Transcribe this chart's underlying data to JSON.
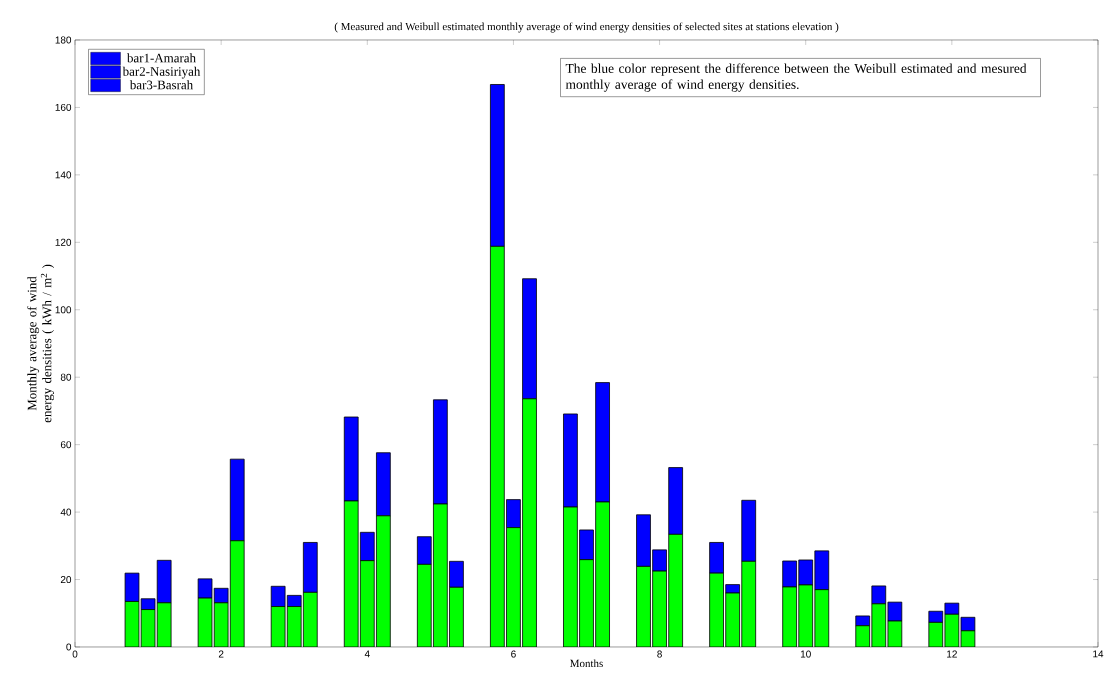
{
  "chart_data": {
    "type": "bar",
    "stacked": true,
    "title": "( Measured and Weibull estimated monthly average of wind energy densities of selected sites at stations elevation )",
    "xlabel": "Months",
    "ylabel": "Monthly average of wind energy densities ( kWh / m$^{2}$ )",
    "xlim": [
      0,
      14
    ],
    "xticks": [
      0,
      2,
      4,
      6,
      8,
      10,
      12,
      14
    ],
    "ylim": [
      0,
      180
    ],
    "yticks": [
      0,
      20,
      40,
      60,
      80,
      100,
      120,
      140,
      160,
      180
    ],
    "grid": false,
    "legend": "top left",
    "annotations": [
      "The blue color represent the difference between the Weibull estimated and mesured monthly average of wind energy densities."
    ],
    "x": [
      0.78,
      1,
      1.22,
      1.78,
      2,
      2.22,
      2.78,
      3,
      3.22,
      3.78,
      4,
      4.22,
      4.78,
      5,
      5.22,
      5.78,
      6,
      6.22,
      6.78,
      7,
      7.22,
      7.78,
      8,
      8.22,
      8.78,
      9,
      9.22,
      9.78,
      10,
      10.22,
      10.78,
      11,
      11.22,
      11.78,
      12,
      12.22
    ],
    "series": [
      {
        "color": "#00ff00",
        "values": [
          13.5,
          null,
          null,
          14.5,
          null,
          null,
          12.0,
          null,
          null,
          43.3,
          null,
          null,
          24.5,
          null,
          null,
          118.8,
          null,
          null,
          41.5,
          null,
          null,
          23.9,
          null,
          null,
          21.9,
          null,
          null,
          17.8,
          null,
          null,
          6.3,
          null,
          null,
          7.3,
          null,
          null
        ]
      },
      {
        "name": "bar1-Amarah",
        "color": "#0000ff",
        "values": [
          8.4,
          null,
          null,
          5.7,
          null,
          null,
          6.0,
          null,
          null,
          24.9,
          null,
          null,
          8.2,
          null,
          null,
          48.0,
          null,
          null,
          27.6,
          null,
          null,
          15.3,
          null,
          null,
          9.1,
          null,
          null,
          7.7,
          null,
          null,
          2.9,
          null,
          null,
          3.3,
          null,
          null
        ]
      },
      {
        "color": "#00ff00",
        "values": [
          null,
          11.1,
          null,
          null,
          13.1,
          null,
          null,
          12.0,
          null,
          null,
          25.6,
          null,
          null,
          42.4,
          null,
          null,
          35.4,
          null,
          null,
          25.9,
          null,
          null,
          22.5,
          null,
          null,
          16.0,
          null,
          null,
          18.4,
          null,
          null,
          12.8,
          null,
          null,
          9.7,
          null
        ]
      },
      {
        "name": "bar2-Nasiriyah",
        "color": "#0000ff",
        "values": [
          null,
          3.2,
          null,
          null,
          4.3,
          null,
          null,
          3.3,
          null,
          null,
          8.4,
          null,
          null,
          30.9,
          null,
          null,
          8.3,
          null,
          null,
          8.8,
          null,
          null,
          6.3,
          null,
          null,
          2.5,
          null,
          null,
          7.4,
          null,
          null,
          5.3,
          null,
          null,
          3.3,
          null
        ]
      },
      {
        "color": "#00ff00",
        "values": [
          null,
          null,
          13.1,
          null,
          null,
          31.5,
          null,
          null,
          16.2,
          null,
          null,
          38.9,
          null,
          null,
          17.7,
          null,
          null,
          73.6,
          null,
          null,
          43.0,
          null,
          null,
          33.4,
          null,
          null,
          25.4,
          null,
          null,
          17.0,
          null,
          null,
          7.7,
          null,
          null,
          4.8
        ]
      },
      {
        "name": "bar3-Basrah",
        "color": "#0000ff",
        "values": [
          null,
          null,
          12.6,
          null,
          null,
          24.2,
          null,
          null,
          14.8,
          null,
          null,
          18.7,
          null,
          null,
          7.7,
          null,
          null,
          35.6,
          null,
          null,
          35.4,
          null,
          null,
          19.8,
          null,
          null,
          18.1,
          null,
          null,
          11.5,
          null,
          null,
          5.6,
          null,
          null,
          4.0
        ]
      }
    ]
  }
}
